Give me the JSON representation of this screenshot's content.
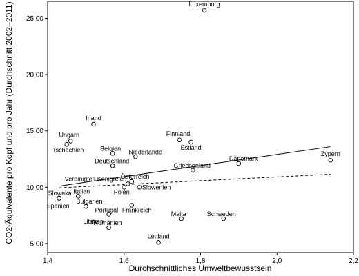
{
  "chart_data": {
    "type": "scatter",
    "title": "",
    "xlabel": "Durchschnittliches Umweltbewusstsein",
    "ylabel": "CO2-Äquivalente pro Kopf und pro Jahr (Durchschnitt 2002–2011)",
    "xlim": [
      1.4,
      2.2
    ],
    "ylim": [
      4.2,
      26.5
    ],
    "xticks": [
      "1,4",
      "1,6",
      "1,8",
      "2,0",
      "2,2"
    ],
    "yticks": [
      "5,00",
      "10,00",
      "15,00",
      "20,00",
      "25,00"
    ],
    "grid": false,
    "points": [
      {
        "label": "Luxemburg",
        "x": 1.81,
        "y": 25.7
      },
      {
        "label": "Irland",
        "x": 1.52,
        "y": 15.6
      },
      {
        "label": "Ungarn",
        "x": 1.46,
        "y": 14.1
      },
      {
        "label": "Tschechien",
        "x": 1.45,
        "y": 13.8
      },
      {
        "label": "Finnland",
        "x": 1.745,
        "y": 14.2
      },
      {
        "label": "Estland",
        "x": 1.775,
        "y": 14.0
      },
      {
        "label": "Belgien",
        "x": 1.57,
        "y": 13.0
      },
      {
        "label": "Niederlande",
        "x": 1.63,
        "y": 12.7
      },
      {
        "label": "Deutschland",
        "x": 1.57,
        "y": 11.9
      },
      {
        "label": "Zypern",
        "x": 2.14,
        "y": 12.4
      },
      {
        "label": "Dänemark",
        "x": 1.9,
        "y": 12.1
      },
      {
        "label": "Griechenland",
        "x": 1.78,
        "y": 11.5
      },
      {
        "label": "Österreich",
        "x": 1.62,
        "y": 10.5
      },
      {
        "label": "Vereinigtes Königreich",
        "x": 1.61,
        "y": 10.3
      },
      {
        "label": "Polen",
        "x": 1.6,
        "y": 10.0
      },
      {
        "label": "Slowenien",
        "x": 1.64,
        "y": 10.0
      },
      {
        "label": "Slowakai",
        "x": 1.43,
        "y": 9.05
      },
      {
        "label": "Italien",
        "x": 1.48,
        "y": 9.2
      },
      {
        "label": "Spanien",
        "x": 1.43,
        "y": 9.0
      },
      {
        "label": "Bulgarien",
        "x": 1.5,
        "y": 8.3
      },
      {
        "label": "Portugal",
        "x": 1.56,
        "y": 7.6
      },
      {
        "label": "Frankreich",
        "x": 1.62,
        "y": 8.4
      },
      {
        "label": "Litauen",
        "x": 1.52,
        "y": 6.9
      },
      {
        "label": "Rumänien",
        "x": 1.56,
        "y": 6.4
      },
      {
        "label": "Malta",
        "x": 1.75,
        "y": 7.2
      },
      {
        "label": "Schweden",
        "x": 1.86,
        "y": 7.2
      },
      {
        "label": "Lettland",
        "x": 1.69,
        "y": 5.1
      }
    ],
    "fit_lines": [
      {
        "style": "solid",
        "x": [
          1.43,
          2.14
        ],
        "y": [
          10.1,
          13.6
        ]
      },
      {
        "style": "dashed",
        "x": [
          1.43,
          2.14
        ],
        "y": [
          9.95,
          11.15
        ]
      }
    ]
  }
}
